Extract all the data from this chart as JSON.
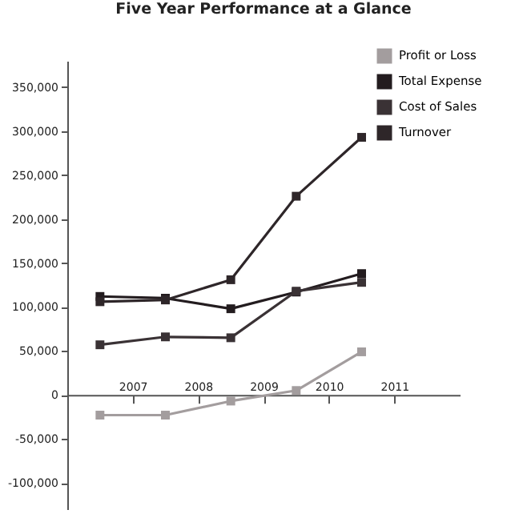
{
  "chart_data": {
    "type": "line",
    "title": "Five Year Performance at a Glance",
    "x": [
      2006.5,
      2007.5,
      2008.5,
      2009.5,
      2010.5
    ],
    "series": [
      {
        "name": "Profit or Loss",
        "color": "#a39d9e",
        "values": [
          -23000,
          -23000,
          -7000,
          5000,
          49000
        ]
      },
      {
        "name": "Total Expense",
        "color": "#231c1f",
        "values": [
          112000,
          110000,
          98000,
          117000,
          138000
        ]
      },
      {
        "name": "Cost of Sales",
        "color": "#3a3235",
        "values": [
          57000,
          66000,
          65000,
          118000,
          128000
        ]
      },
      {
        "name": "Turnover",
        "color": "#2e2629",
        "values": [
          106000,
          108000,
          131000,
          226000,
          293000
        ]
      }
    ],
    "xlim": [
      2006,
      2012
    ],
    "xticks": [
      2007,
      2008,
      2009,
      2010,
      2011
    ],
    "ylim": [
      -130000,
      380000
    ],
    "yticks": [
      {
        "value": -100000,
        "label": "-100,000"
      },
      {
        "value": -50000,
        "label": "-50,000"
      },
      0,
      {
        "value": 50000,
        "label": "50,000"
      },
      {
        "value": 100000,
        "label": "100,000"
      },
      {
        "value": 150000,
        "label": "150,000"
      },
      {
        "value": 200000,
        "label": "200,000"
      },
      {
        "value": 250000,
        "label": "250,000"
      },
      {
        "value": 300000,
        "label": "300,000"
      },
      {
        "value": 350000,
        "label": "350,000"
      }
    ],
    "grid": false,
    "legend": "top right",
    "marker": "square",
    "line_style": "solid"
  }
}
